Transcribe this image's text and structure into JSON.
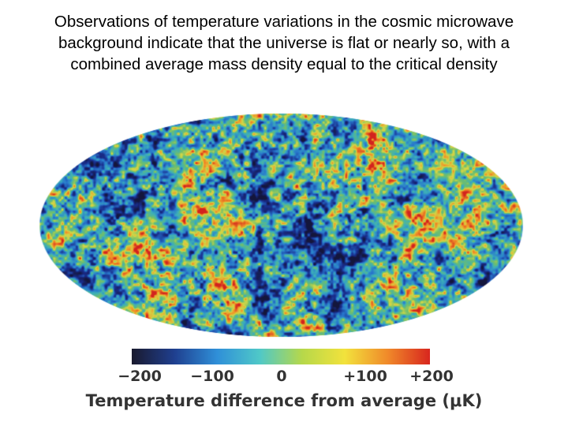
{
  "caption": {
    "lines": [
      "Observations of temperature variations in the cosmic microwave",
      "background indicate that the universe is flat or nearly so, with a",
      "combined average mass density equal to the critical density"
    ]
  },
  "colorbar": {
    "ticks": [
      "−200",
      "−100",
      "0",
      "+100",
      "+200"
    ],
    "title": "Temperature difference from average (μK)",
    "colors": [
      "#1a1a2e",
      "#1f3f8f",
      "#2f8fd8",
      "#4fc8c8",
      "#b6d84a",
      "#f2e23c",
      "#f08a2a",
      "#d8261e"
    ]
  }
}
